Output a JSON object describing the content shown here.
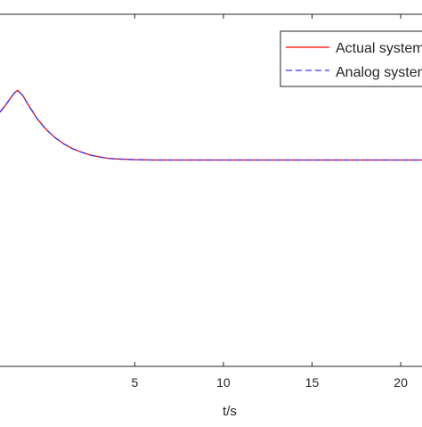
{
  "chart_data": {
    "type": "line",
    "xlabel": "t/s",
    "ylabel": "",
    "xlim": [
      -2.6,
      21.2
    ],
    "xticks": [
      5,
      10,
      15,
      20
    ],
    "xtick_labels": [
      "5",
      "10",
      "15",
      "20"
    ],
    "ylim": [
      0,
      1
    ],
    "grid": false,
    "legend_position": "top-right",
    "series": [
      {
        "name": "Actual system",
        "color": "#ff0000",
        "line_style": "solid",
        "x": [
          -2.6,
          -2.3,
          -2.0,
          -1.8,
          -1.6,
          -1.3,
          -1.0,
          -0.5,
          0.0,
          0.5,
          1.0,
          1.5,
          2.0,
          2.5,
          3.0,
          3.5,
          4.0,
          5.0,
          6.0,
          7.0,
          8.0,
          10.0,
          12.0,
          15.0,
          18.0,
          21.2
        ],
        "y": [
          0.722,
          0.741,
          0.762,
          0.776,
          0.784,
          0.768,
          0.742,
          0.703,
          0.673,
          0.65,
          0.632,
          0.618,
          0.608,
          0.6,
          0.595,
          0.591,
          0.589,
          0.587,
          0.586,
          0.586,
          0.586,
          0.586,
          0.586,
          0.586,
          0.586,
          0.586
        ]
      },
      {
        "name": "Analog system",
        "color": "#3333ff",
        "line_style": "dashed",
        "x": [
          -2.6,
          -2.3,
          -2.0,
          -1.8,
          -1.6,
          -1.3,
          -1.0,
          -0.5,
          0.0,
          0.5,
          1.0,
          1.5,
          2.0,
          2.5,
          3.0,
          3.5,
          4.0,
          5.0,
          6.0,
          7.0,
          8.0,
          10.0,
          12.0,
          15.0,
          18.0,
          21.2
        ],
        "y": [
          0.722,
          0.741,
          0.762,
          0.776,
          0.784,
          0.768,
          0.742,
          0.703,
          0.673,
          0.65,
          0.632,
          0.618,
          0.608,
          0.6,
          0.595,
          0.591,
          0.589,
          0.587,
          0.586,
          0.586,
          0.586,
          0.586,
          0.586,
          0.586,
          0.586,
          0.586
        ]
      }
    ]
  }
}
